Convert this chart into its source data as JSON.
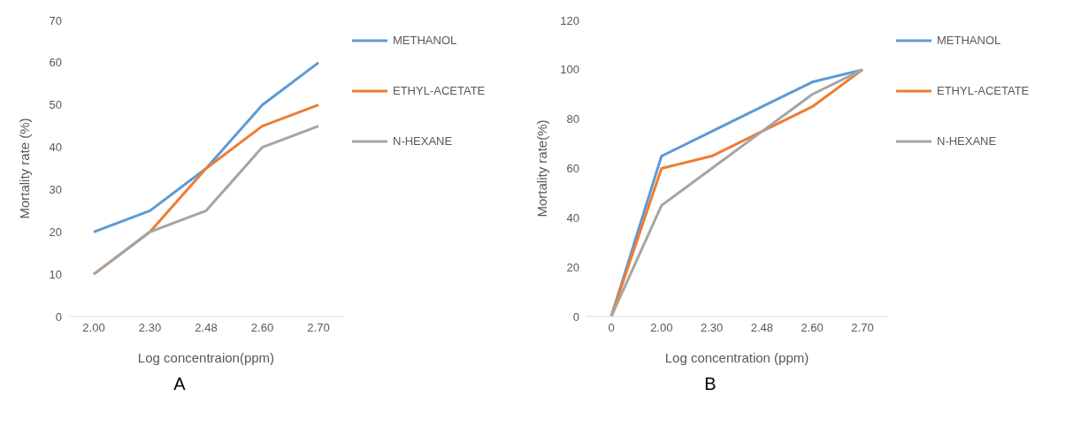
{
  "chart_data": [
    {
      "type": "line",
      "categories": [
        "2.00",
        "2.30",
        "2.48",
        "2.60",
        "2.70"
      ],
      "series": [
        {
          "name": "METHANOL",
          "color": "#5b9bd5",
          "values": [
            20,
            25,
            35,
            50,
            60
          ]
        },
        {
          "name": "ETHYL-ACETATE",
          "color": "#ed7d31",
          "values": [
            10,
            20,
            35,
            45,
            50
          ]
        },
        {
          "name": "N-HEXANE",
          "color": "#a5a5a5",
          "values": [
            10,
            20,
            25,
            40,
            45
          ]
        }
      ],
      "ylim": [
        0,
        70
      ],
      "yticks": [
        0,
        10,
        20,
        30,
        40,
        50,
        60,
        70
      ],
      "xlabel": "Log concentraion(ppm)",
      "ylabel": "Mortality rate (%)",
      "legend": "right",
      "marker": "none",
      "line_style": "solid",
      "annotations": [
        "A"
      ]
    },
    {
      "type": "line",
      "categories": [
        "0",
        "2.00",
        "2.30",
        "2.48",
        "2.60",
        "2.70"
      ],
      "series": [
        {
          "name": "METHANOL",
          "color": "#5b9bd5",
          "values": [
            0,
            65,
            75,
            85,
            95,
            100
          ]
        },
        {
          "name": "ETHYL-ACETATE",
          "color": "#ed7d31",
          "values": [
            0,
            60,
            65,
            75,
            85,
            100
          ]
        },
        {
          "name": "N-HEXANE",
          "color": "#a5a5a5",
          "values": [
            0,
            45,
            60,
            75,
            90,
            100
          ]
        }
      ],
      "ylim": [
        0,
        120
      ],
      "yticks": [
        0,
        20,
        40,
        60,
        80,
        100,
        120
      ],
      "xlabel": "Log concentration (ppm)",
      "ylabel": "Mortality rate(%)",
      "legend": "right",
      "marker": "none",
      "line_style": "solid",
      "annotations": [
        "B"
      ]
    }
  ]
}
